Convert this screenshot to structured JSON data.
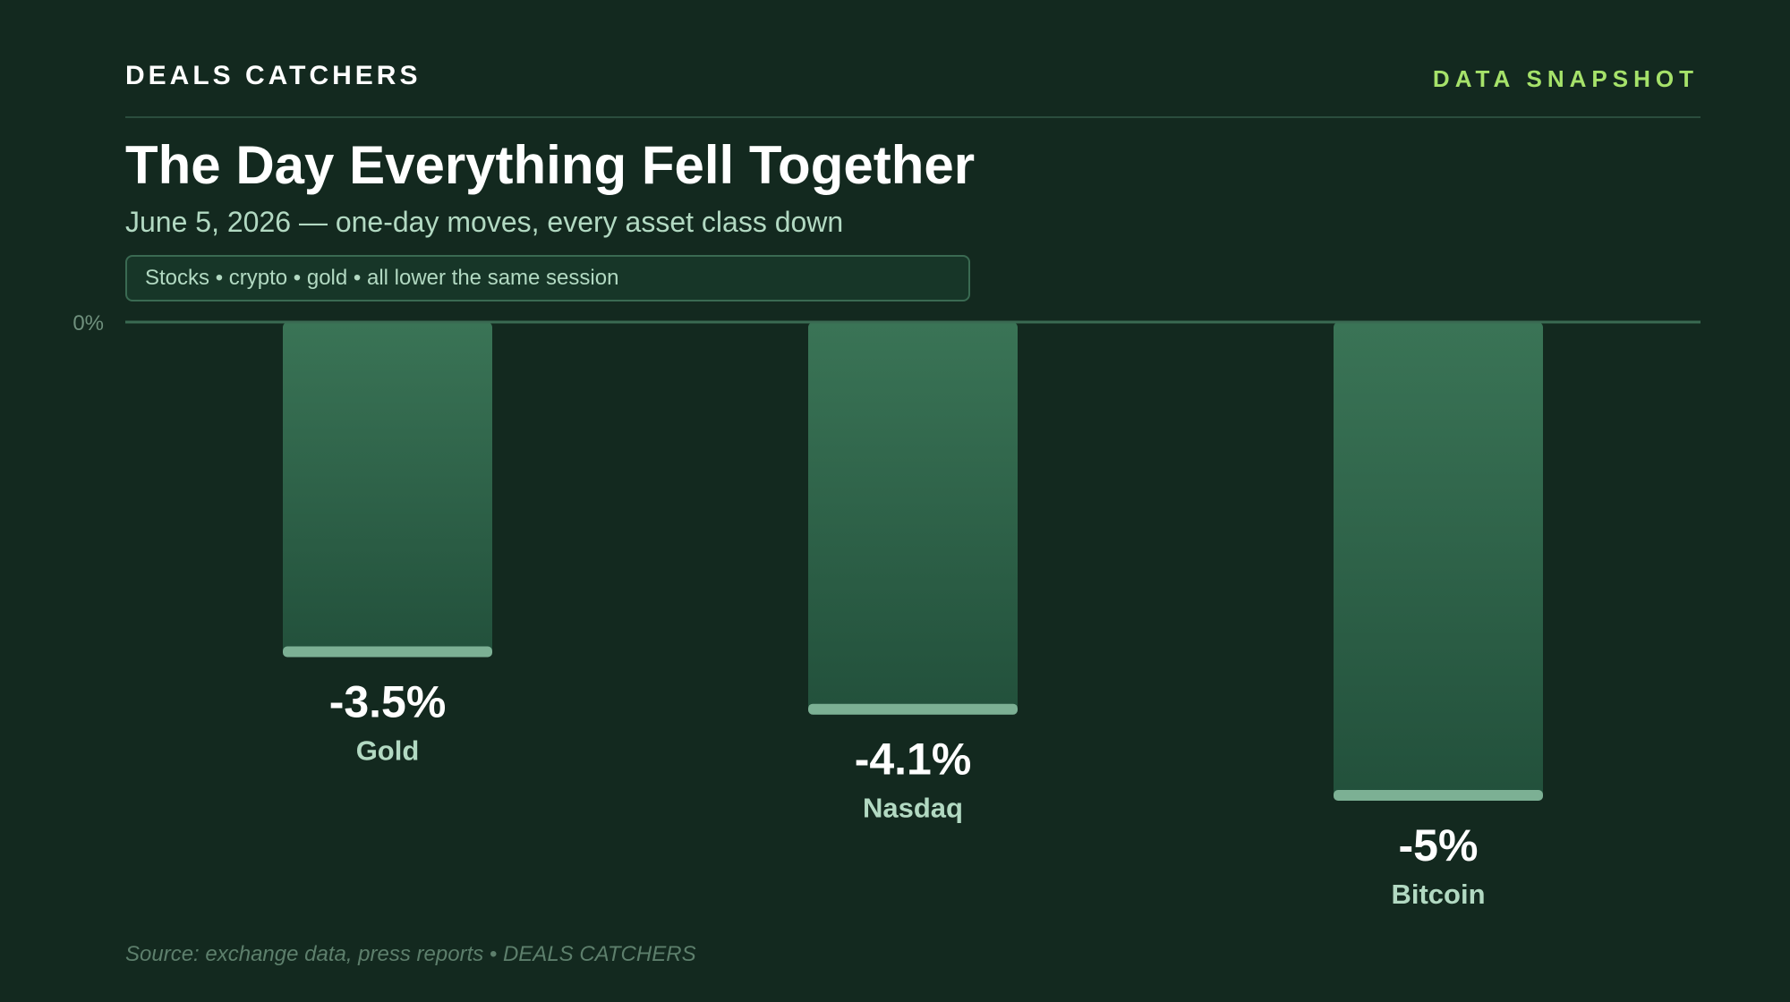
{
  "header": {
    "brand": "DEALS CATCHERS",
    "tag": "DATA SNAPSHOT"
  },
  "headline": {
    "title": "The Day Everything Fell Together",
    "subtitle": "June 5, 2026 — one-day moves, every asset class down",
    "pill": "Stocks • crypto • gold • all lower the same session"
  },
  "footer": {
    "source": "Source: exchange data, press reports • DEALS CATCHERS"
  },
  "colors": {
    "background": "#13291f",
    "accent": "#a6e26a",
    "bar_top": "#3a7456",
    "bar_bottom": "#22503b",
    "bar_cap": "#7cb094",
    "value_text": "#ffffff",
    "category_text": "#b2d9c2"
  },
  "chart_data": {
    "type": "bar",
    "categories": [
      "Gold",
      "Nasdaq",
      "Bitcoin"
    ],
    "values": [
      -3.5,
      -4.1,
      -5
    ],
    "value_labels": [
      "-3.5%",
      "-4.1%",
      "-5%"
    ],
    "y_tick_labels": [
      "0%"
    ],
    "ylim": [
      -5,
      0
    ],
    "grid": false,
    "legend": "none"
  }
}
